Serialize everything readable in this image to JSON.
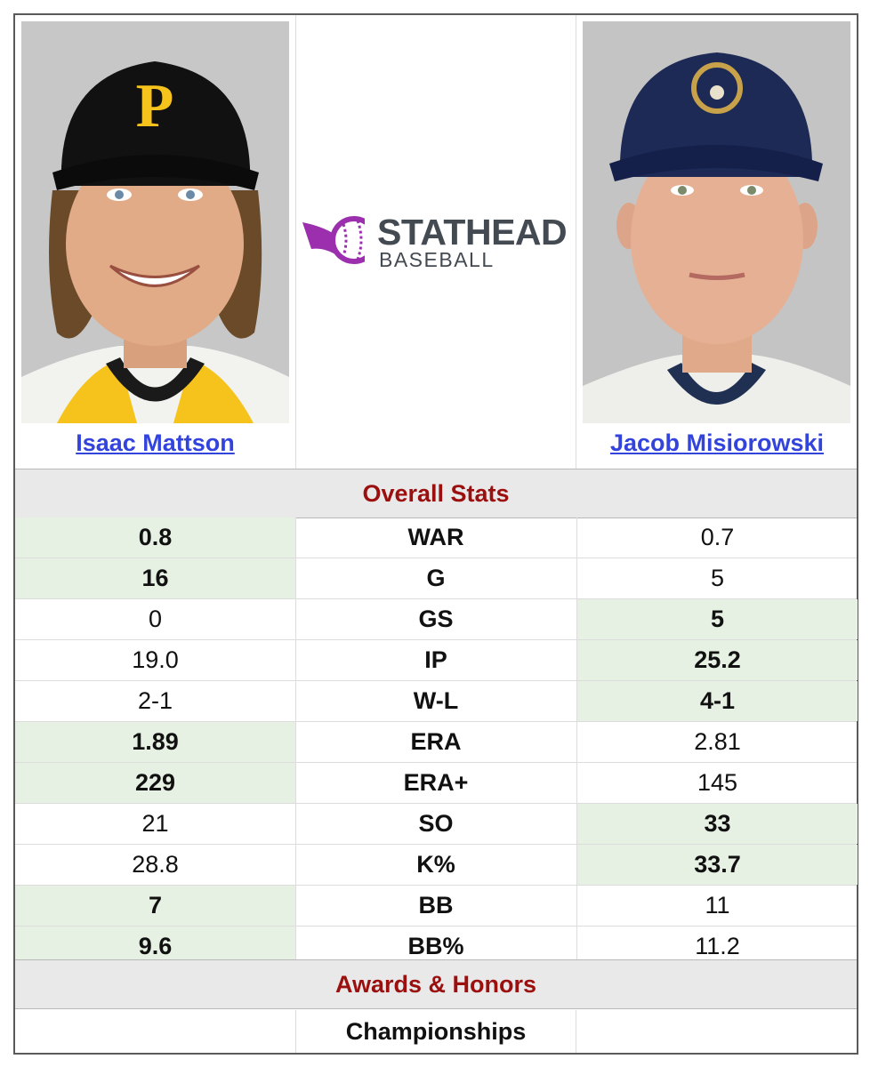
{
  "players": {
    "left": {
      "name": "Isaac Mattson",
      "team_cap": "pirates-cap"
    },
    "right": {
      "name": "Jacob Misiorowski",
      "team_cap": "brewers-cap"
    }
  },
  "logo": {
    "line1": "STATHEAD",
    "line2": "BASEBALL",
    "accent": "#9b2fae"
  },
  "sections": {
    "overall": "Overall Stats",
    "awards": "Awards & Honors"
  },
  "stats": [
    {
      "label": "WAR",
      "left": "0.8",
      "right": "0.7",
      "winner": "left"
    },
    {
      "label": "G",
      "left": "16",
      "right": "5",
      "winner": "left"
    },
    {
      "label": "GS",
      "left": "0",
      "right": "5",
      "winner": "right"
    },
    {
      "label": "IP",
      "left": "19.0",
      "right": "25.2",
      "winner": "right"
    },
    {
      "label": "W-L",
      "left": "2-1",
      "right": "4-1",
      "winner": "right"
    },
    {
      "label": "ERA",
      "left": "1.89",
      "right": "2.81",
      "winner": "left"
    },
    {
      "label": "ERA+",
      "left": "229",
      "right": "145",
      "winner": "left"
    },
    {
      "label": "SO",
      "left": "21",
      "right": "33",
      "winner": "right"
    },
    {
      "label": "K%",
      "left": "28.8",
      "right": "33.7",
      "winner": "right"
    },
    {
      "label": "BB",
      "left": "7",
      "right": "11",
      "winner": "left"
    },
    {
      "label": "BB%",
      "left": "9.6",
      "right": "11.2",
      "winner": "left"
    }
  ],
  "awards": {
    "championships_label": "Championships"
  },
  "colors": {
    "highlight": "#e6f1e3",
    "section_text": "#9b0f0f",
    "link": "#3344dd"
  }
}
